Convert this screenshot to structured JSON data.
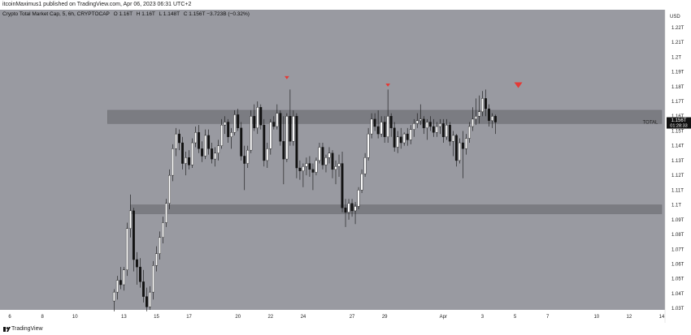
{
  "header": {
    "text": "itcoinMaximus1 published on TradingView.com, Apr 06, 2023 06:31 UTC+2"
  },
  "legend": {
    "title": "Crypto Total Market Cap, 5, 6h, CRYPTOCAP",
    "o_key": "O",
    "o_val": "1.16T",
    "h_key": "H",
    "h_val": "1.16T",
    "l_key": "L",
    "l_val": "1.148T",
    "c_key": "C",
    "c_val": "1.156T",
    "change": "−3.723B (−0.32%)"
  },
  "footer": {
    "brand": "TradingView"
  },
  "colors": {
    "plot_bg": "#999aa1",
    "axis_bg": "#ffffff",
    "zone": "#7b7c82",
    "candle_up": "#ffffff",
    "candle_down": "#111111",
    "marker": "#e53935",
    "price_tag": "#111111"
  },
  "chart_data": {
    "type": "candlestick",
    "currency_label": "USD",
    "y_axis_labels": [
      "1.22T",
      "1.21T",
      "1.2T",
      "1.19T",
      "1.18T",
      "1.17T",
      "1.16T",
      "1.15T",
      "1.14T",
      "1.13T",
      "1.12T",
      "1.11T",
      "1.1T",
      "1.09T",
      "1.08T",
      "1.07T",
      "1.06T",
      "1.05T",
      "1.04T",
      "1.03T"
    ],
    "y_axis_values": [
      1.22,
      1.21,
      1.2,
      1.19,
      1.18,
      1.17,
      1.16,
      1.15,
      1.14,
      1.13,
      1.12,
      1.11,
      1.1,
      1.09,
      1.08,
      1.07,
      1.06,
      1.05,
      1.04,
      1.03
    ],
    "ylim": [
      1.029,
      1.232
    ],
    "x_axis_labels": [
      "6",
      "8",
      "10",
      "13",
      "15",
      "17",
      "20",
      "22",
      "24",
      "27",
      "29",
      "Apr",
      "3",
      "5",
      "7",
      "10",
      "12",
      "14"
    ],
    "x_axis_index": [
      -70,
      -60,
      -50,
      -35,
      -25,
      -15,
      0,
      10,
      20,
      35,
      45,
      63,
      75,
      85,
      95,
      110,
      120,
      130
    ],
    "last_price": {
      "symbol": "TOTAL",
      "value": "1.156T",
      "countdown": "01:28:33",
      "y": 1.156
    },
    "resistance_zone": {
      "low": 1.155,
      "high": 1.164,
      "from_index": -40,
      "to_index": 130
    },
    "support_zone": {
      "low": 1.094,
      "high": 1.1,
      "from_index": -33,
      "to_index": 130
    },
    "markers": [
      {
        "index": 15,
        "y": 1.186
      },
      {
        "index": 46,
        "y": 1.181
      },
      {
        "index": 86,
        "y": 1.181,
        "size": "large"
      }
    ],
    "candles": [
      {
        "i": -38,
        "o": 1.035,
        "h": 1.043,
        "l": 1.028,
        "c": 1.041
      },
      {
        "i": -37,
        "o": 1.041,
        "h": 1.052,
        "l": 1.036,
        "c": 1.049
      },
      {
        "i": -36,
        "o": 1.049,
        "h": 1.058,
        "l": 1.043,
        "c": 1.046
      },
      {
        "i": -35,
        "o": 1.046,
        "h": 1.058,
        "l": 1.042,
        "c": 1.056
      },
      {
        "i": -34,
        "o": 1.056,
        "h": 1.088,
        "l": 1.052,
        "c": 1.084
      },
      {
        "i": -33,
        "o": 1.084,
        "h": 1.107,
        "l": 1.078,
        "c": 1.096
      },
      {
        "i": -32,
        "o": 1.096,
        "h": 1.098,
        "l": 1.055,
        "c": 1.063
      },
      {
        "i": -31,
        "o": 1.063,
        "h": 1.068,
        "l": 1.046,
        "c": 1.058
      },
      {
        "i": -30,
        "o": 1.058,
        "h": 1.064,
        "l": 1.044,
        "c": 1.048
      },
      {
        "i": -29,
        "o": 1.048,
        "h": 1.056,
        "l": 1.034,
        "c": 1.038
      },
      {
        "i": -28,
        "o": 1.038,
        "h": 1.044,
        "l": 1.028,
        "c": 1.031
      },
      {
        "i": -27,
        "o": 1.031,
        "h": 1.045,
        "l": 1.029,
        "c": 1.041
      },
      {
        "i": -26,
        "o": 1.041,
        "h": 1.062,
        "l": 1.036,
        "c": 1.059
      },
      {
        "i": -25,
        "o": 1.059,
        "h": 1.072,
        "l": 1.055,
        "c": 1.067
      },
      {
        "i": -24,
        "o": 1.067,
        "h": 1.082,
        "l": 1.063,
        "c": 1.078
      },
      {
        "i": -23,
        "o": 1.078,
        "h": 1.092,
        "l": 1.074,
        "c": 1.088
      },
      {
        "i": -22,
        "o": 1.088,
        "h": 1.104,
        "l": 1.085,
        "c": 1.101
      },
      {
        "i": -21,
        "o": 1.101,
        "h": 1.124,
        "l": 1.097,
        "c": 1.12
      },
      {
        "i": -20,
        "o": 1.12,
        "h": 1.141,
        "l": 1.116,
        "c": 1.138
      },
      {
        "i": -19,
        "o": 1.138,
        "h": 1.152,
        "l": 1.133,
        "c": 1.148
      },
      {
        "i": -18,
        "o": 1.148,
        "h": 1.151,
        "l": 1.137,
        "c": 1.142
      },
      {
        "i": -17,
        "o": 1.142,
        "h": 1.146,
        "l": 1.124,
        "c": 1.128
      },
      {
        "i": -16,
        "o": 1.128,
        "h": 1.136,
        "l": 1.12,
        "c": 1.132
      },
      {
        "i": -15,
        "o": 1.132,
        "h": 1.137,
        "l": 1.124,
        "c": 1.127
      },
      {
        "i": -14,
        "o": 1.127,
        "h": 1.145,
        "l": 1.125,
        "c": 1.142
      },
      {
        "i": -13,
        "o": 1.142,
        "h": 1.153,
        "l": 1.139,
        "c": 1.149
      },
      {
        "i": -12,
        "o": 1.149,
        "h": 1.154,
        "l": 1.135,
        "c": 1.138
      },
      {
        "i": -11,
        "o": 1.138,
        "h": 1.143,
        "l": 1.129,
        "c": 1.133
      },
      {
        "i": -10,
        "o": 1.133,
        "h": 1.151,
        "l": 1.131,
        "c": 1.147
      },
      {
        "i": -9,
        "o": 1.147,
        "h": 1.151,
        "l": 1.134,
        "c": 1.138
      },
      {
        "i": -8,
        "o": 1.138,
        "h": 1.142,
        "l": 1.128,
        "c": 1.131
      },
      {
        "i": -7,
        "o": 1.131,
        "h": 1.139,
        "l": 1.126,
        "c": 1.135
      },
      {
        "i": -6,
        "o": 1.135,
        "h": 1.144,
        "l": 1.13,
        "c": 1.14
      },
      {
        "i": -5,
        "o": 1.14,
        "h": 1.158,
        "l": 1.138,
        "c": 1.154
      },
      {
        "i": -4,
        "o": 1.154,
        "h": 1.16,
        "l": 1.148,
        "c": 1.156
      },
      {
        "i": -3,
        "o": 1.156,
        "h": 1.158,
        "l": 1.142,
        "c": 1.146
      },
      {
        "i": -2,
        "o": 1.146,
        "h": 1.152,
        "l": 1.138,
        "c": 1.149
      },
      {
        "i": -1,
        "o": 1.149,
        "h": 1.164,
        "l": 1.147,
        "c": 1.161
      },
      {
        "i": 0,
        "o": 1.161,
        "h": 1.165,
        "l": 1.15,
        "c": 1.152
      },
      {
        "i": 1,
        "o": 1.152,
        "h": 1.156,
        "l": 1.13,
        "c": 1.133
      },
      {
        "i": 2,
        "o": 1.133,
        "h": 1.14,
        "l": 1.11,
        "c": 1.128
      },
      {
        "i": 3,
        "o": 1.128,
        "h": 1.14,
        "l": 1.125,
        "c": 1.137
      },
      {
        "i": 4,
        "o": 1.137,
        "h": 1.164,
        "l": 1.135,
        "c": 1.16
      },
      {
        "i": 5,
        "o": 1.16,
        "h": 1.168,
        "l": 1.15,
        "c": 1.152
      },
      {
        "i": 6,
        "o": 1.152,
        "h": 1.17,
        "l": 1.148,
        "c": 1.166
      },
      {
        "i": 7,
        "o": 1.166,
        "h": 1.168,
        "l": 1.151,
        "c": 1.154
      },
      {
        "i": 8,
        "o": 1.154,
        "h": 1.158,
        "l": 1.126,
        "c": 1.13
      },
      {
        "i": 9,
        "o": 1.13,
        "h": 1.142,
        "l": 1.125,
        "c": 1.138
      },
      {
        "i": 10,
        "o": 1.138,
        "h": 1.158,
        "l": 1.134,
        "c": 1.156
      },
      {
        "i": 11,
        "o": 1.156,
        "h": 1.16,
        "l": 1.151,
        "c": 1.153
      },
      {
        "i": 12,
        "o": 1.153,
        "h": 1.168,
        "l": 1.151,
        "c": 1.162
      },
      {
        "i": 13,
        "o": 1.162,
        "h": 1.164,
        "l": 1.14,
        "c": 1.143
      },
      {
        "i": 14,
        "o": 1.143,
        "h": 1.16,
        "l": 1.114,
        "c": 1.131
      },
      {
        "i": 15,
        "o": 1.131,
        "h": 1.162,
        "l": 1.129,
        "c": 1.16
      },
      {
        "i": 16,
        "o": 1.16,
        "h": 1.178,
        "l": 1.14,
        "c": 1.143
      },
      {
        "i": 17,
        "o": 1.143,
        "h": 1.164,
        "l": 1.14,
        "c": 1.16
      },
      {
        "i": 18,
        "o": 1.16,
        "h": 1.162,
        "l": 1.118,
        "c": 1.125
      },
      {
        "i": 19,
        "o": 1.125,
        "h": 1.13,
        "l": 1.117,
        "c": 1.123
      },
      {
        "i": 20,
        "o": 1.123,
        "h": 1.128,
        "l": 1.112,
        "c": 1.126
      },
      {
        "i": 21,
        "o": 1.126,
        "h": 1.132,
        "l": 1.12,
        "c": 1.128
      },
      {
        "i": 22,
        "o": 1.128,
        "h": 1.133,
        "l": 1.119,
        "c": 1.124
      },
      {
        "i": 23,
        "o": 1.124,
        "h": 1.128,
        "l": 1.11,
        "c": 1.122
      },
      {
        "i": 24,
        "o": 1.122,
        "h": 1.132,
        "l": 1.12,
        "c": 1.13
      },
      {
        "i": 25,
        "o": 1.13,
        "h": 1.142,
        "l": 1.128,
        "c": 1.139
      },
      {
        "i": 26,
        "o": 1.139,
        "h": 1.142,
        "l": 1.124,
        "c": 1.127
      },
      {
        "i": 27,
        "o": 1.127,
        "h": 1.134,
        "l": 1.122,
        "c": 1.132
      },
      {
        "i": 28,
        "o": 1.132,
        "h": 1.139,
        "l": 1.128,
        "c": 1.135
      },
      {
        "i": 29,
        "o": 1.135,
        "h": 1.137,
        "l": 1.118,
        "c": 1.124
      },
      {
        "i": 30,
        "o": 1.124,
        "h": 1.13,
        "l": 1.114,
        "c": 1.126
      },
      {
        "i": 31,
        "o": 1.126,
        "h": 1.134,
        "l": 1.119,
        "c": 1.128
      },
      {
        "i": 32,
        "o": 1.128,
        "h": 1.136,
        "l": 1.095,
        "c": 1.098
      },
      {
        "i": 33,
        "o": 1.098,
        "h": 1.104,
        "l": 1.085,
        "c": 1.095
      },
      {
        "i": 34,
        "o": 1.095,
        "h": 1.104,
        "l": 1.09,
        "c": 1.101
      },
      {
        "i": 35,
        "o": 1.101,
        "h": 1.104,
        "l": 1.092,
        "c": 1.096
      },
      {
        "i": 36,
        "o": 1.096,
        "h": 1.102,
        "l": 1.087,
        "c": 1.099
      },
      {
        "i": 37,
        "o": 1.099,
        "h": 1.112,
        "l": 1.097,
        "c": 1.11
      },
      {
        "i": 38,
        "o": 1.11,
        "h": 1.124,
        "l": 1.108,
        "c": 1.121
      },
      {
        "i": 39,
        "o": 1.121,
        "h": 1.135,
        "l": 1.119,
        "c": 1.132
      },
      {
        "i": 40,
        "o": 1.132,
        "h": 1.152,
        "l": 1.13,
        "c": 1.148
      },
      {
        "i": 41,
        "o": 1.148,
        "h": 1.162,
        "l": 1.145,
        "c": 1.158
      },
      {
        "i": 42,
        "o": 1.158,
        "h": 1.162,
        "l": 1.15,
        "c": 1.153
      },
      {
        "i": 43,
        "o": 1.153,
        "h": 1.164,
        "l": 1.145,
        "c": 1.148
      },
      {
        "i": 44,
        "o": 1.148,
        "h": 1.16,
        "l": 1.146,
        "c": 1.156
      },
      {
        "i": 45,
        "o": 1.156,
        "h": 1.16,
        "l": 1.142,
        "c": 1.146
      },
      {
        "i": 46,
        "o": 1.146,
        "h": 1.178,
        "l": 1.142,
        "c": 1.16
      },
      {
        "i": 47,
        "o": 1.16,
        "h": 1.162,
        "l": 1.146,
        "c": 1.152
      },
      {
        "i": 48,
        "o": 1.152,
        "h": 1.156,
        "l": 1.136,
        "c": 1.139
      },
      {
        "i": 49,
        "o": 1.139,
        "h": 1.15,
        "l": 1.135,
        "c": 1.146
      },
      {
        "i": 50,
        "o": 1.146,
        "h": 1.152,
        "l": 1.138,
        "c": 1.142
      },
      {
        "i": 51,
        "o": 1.142,
        "h": 1.149,
        "l": 1.14,
        "c": 1.148
      },
      {
        "i": 52,
        "o": 1.148,
        "h": 1.152,
        "l": 1.14,
        "c": 1.144
      },
      {
        "i": 53,
        "o": 1.144,
        "h": 1.154,
        "l": 1.141,
        "c": 1.151
      },
      {
        "i": 54,
        "o": 1.151,
        "h": 1.158,
        "l": 1.146,
        "c": 1.155
      },
      {
        "i": 55,
        "o": 1.155,
        "h": 1.162,
        "l": 1.152,
        "c": 1.157
      },
      {
        "i": 56,
        "o": 1.157,
        "h": 1.168,
        "l": 1.154,
        "c": 1.158
      },
      {
        "i": 57,
        "o": 1.158,
        "h": 1.16,
        "l": 1.148,
        "c": 1.152
      },
      {
        "i": 58,
        "o": 1.152,
        "h": 1.158,
        "l": 1.144,
        "c": 1.156
      },
      {
        "i": 59,
        "o": 1.156,
        "h": 1.16,
        "l": 1.15,
        "c": 1.153
      },
      {
        "i": 60,
        "o": 1.153,
        "h": 1.158,
        "l": 1.146,
        "c": 1.149
      },
      {
        "i": 61,
        "o": 1.149,
        "h": 1.156,
        "l": 1.146,
        "c": 1.153
      },
      {
        "i": 62,
        "o": 1.153,
        "h": 1.158,
        "l": 1.148,
        "c": 1.155
      },
      {
        "i": 63,
        "o": 1.155,
        "h": 1.158,
        "l": 1.142,
        "c": 1.146
      },
      {
        "i": 64,
        "o": 1.146,
        "h": 1.158,
        "l": 1.144,
        "c": 1.154
      },
      {
        "i": 65,
        "o": 1.154,
        "h": 1.156,
        "l": 1.14,
        "c": 1.143
      },
      {
        "i": 66,
        "o": 1.143,
        "h": 1.15,
        "l": 1.133,
        "c": 1.147
      },
      {
        "i": 67,
        "o": 1.147,
        "h": 1.148,
        "l": 1.126,
        "c": 1.13
      },
      {
        "i": 68,
        "o": 1.13,
        "h": 1.145,
        "l": 1.128,
        "c": 1.142
      },
      {
        "i": 69,
        "o": 1.142,
        "h": 1.15,
        "l": 1.118,
        "c": 1.138
      },
      {
        "i": 70,
        "o": 1.138,
        "h": 1.148,
        "l": 1.134,
        "c": 1.145
      },
      {
        "i": 71,
        "o": 1.145,
        "h": 1.156,
        "l": 1.142,
        "c": 1.153
      },
      {
        "i": 72,
        "o": 1.153,
        "h": 1.166,
        "l": 1.15,
        "c": 1.158
      },
      {
        "i": 73,
        "o": 1.158,
        "h": 1.172,
        "l": 1.154,
        "c": 1.16
      },
      {
        "i": 74,
        "o": 1.16,
        "h": 1.174,
        "l": 1.155,
        "c": 1.163
      },
      {
        "i": 75,
        "o": 1.163,
        "h": 1.177,
        "l": 1.16,
        "c": 1.172
      },
      {
        "i": 76,
        "o": 1.172,
        "h": 1.178,
        "l": 1.16,
        "c": 1.165
      },
      {
        "i": 77,
        "o": 1.165,
        "h": 1.168,
        "l": 1.153,
        "c": 1.157
      },
      {
        "i": 78,
        "o": 1.157,
        "h": 1.162,
        "l": 1.152,
        "c": 1.16
      },
      {
        "i": 79,
        "o": 1.16,
        "h": 1.161,
        "l": 1.148,
        "c": 1.156
      }
    ],
    "x_index_range": [
      -73,
      131
    ]
  }
}
